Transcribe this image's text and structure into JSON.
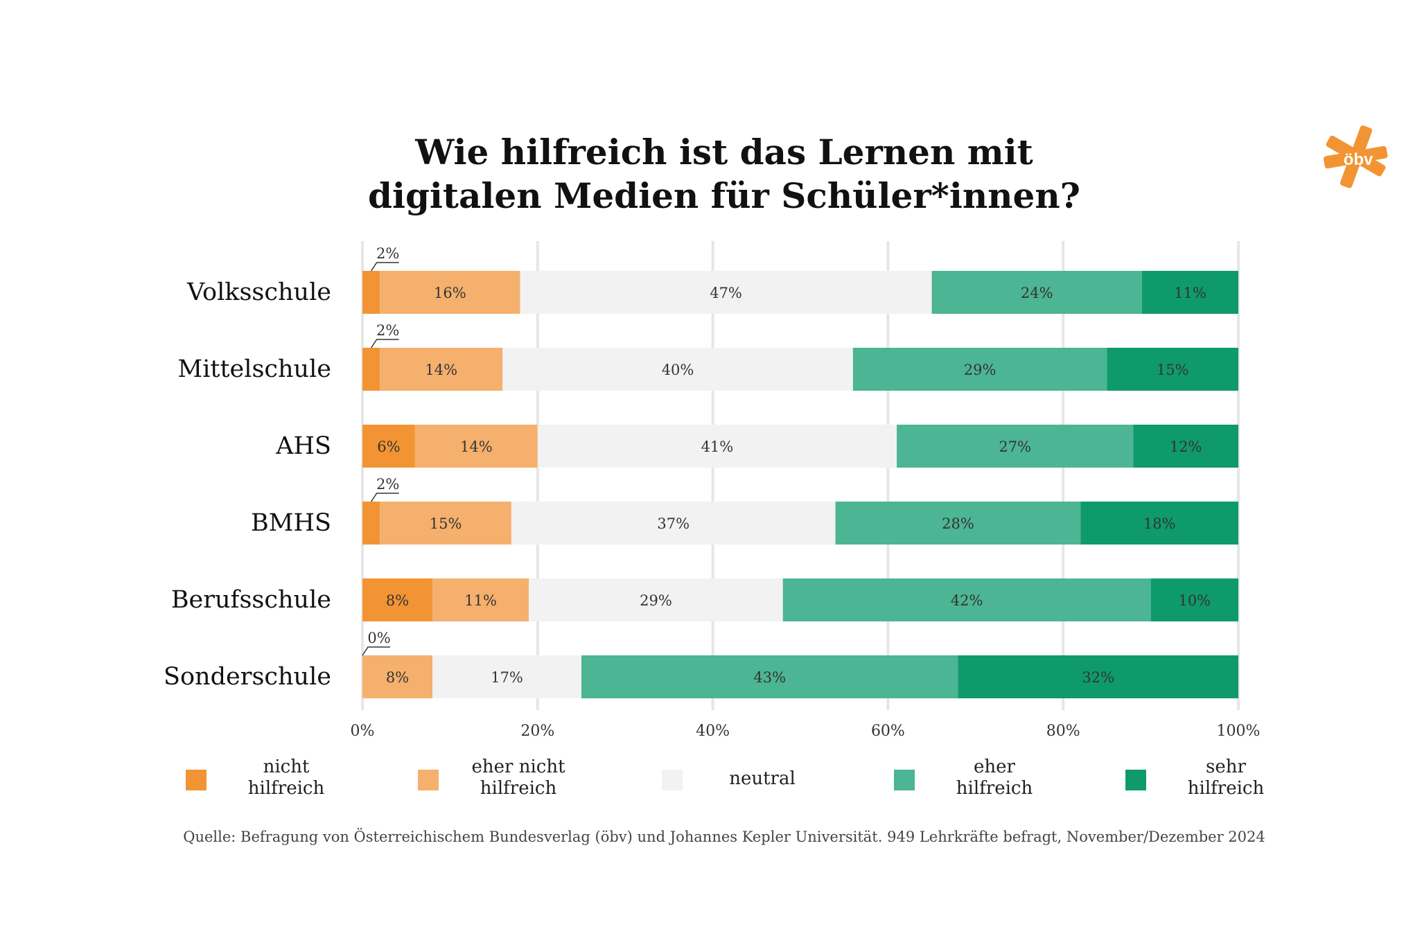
{
  "title": [
    "Wie hilfreich ist das Lernen mit",
    "digitalen Medien für Schüler*innen?"
  ],
  "logo_text": "öbv",
  "source": "Quelle: Befragung von Österreichischem Bundesverlag (öbv) und Johannes Kepler Universität. 949 Lehrkräfte befragt, November/Dezember 2024",
  "colors": {
    "nicht": "#f29433",
    "eher_nicht": "#f5b06d",
    "neutral": "#f2f2f2",
    "eher": "#4cb593",
    "sehr": "#0f9a6c",
    "logo": "#f29433"
  },
  "chart_data": {
    "type": "bar",
    "orientation": "horizontal",
    "stacked": true,
    "categories": [
      "Volksschule",
      "Mittelschule",
      "AHS",
      "BMHS",
      "Berufsschule",
      "Sonderschule"
    ],
    "series": [
      {
        "name": "nicht hilfreich",
        "values": [
          2,
          2,
          6,
          2,
          8,
          0
        ],
        "labels": [
          "2%",
          "2%",
          "6%",
          "2%",
          "8%",
          "0%"
        ]
      },
      {
        "name": "eher nicht hilfreich",
        "values": [
          16,
          14,
          14,
          15,
          11,
          8
        ],
        "labels": [
          "16%",
          "14%",
          "14%",
          "15%",
          "11%",
          "8%"
        ]
      },
      {
        "name": "neutral",
        "values": [
          47,
          40,
          41,
          37,
          29,
          17
        ],
        "labels": [
          "47%",
          "40%",
          "41%",
          "37%",
          "29%",
          "17%"
        ]
      },
      {
        "name": "eher hilfreich",
        "values": [
          24,
          29,
          27,
          28,
          42,
          43
        ],
        "labels": [
          "24%",
          "29%",
          "27%",
          "28%",
          "42%",
          "43%"
        ]
      },
      {
        "name": "sehr hilfreich",
        "values": [
          11,
          15,
          12,
          18,
          10,
          32
        ],
        "labels": [
          "11%",
          "15%",
          "12%",
          "18%",
          "10%",
          "32%"
        ]
      }
    ],
    "xlim": [
      0,
      100
    ],
    "xticks": [
      0,
      20,
      40,
      60,
      80,
      100
    ],
    "xtick_labels": [
      "0%",
      "20%",
      "40%",
      "60%",
      "80%",
      "100%"
    ],
    "grid": true,
    "legend": [
      {
        "label": "nicht\nhilfreich",
        "key": "nicht"
      },
      {
        "label": "eher nicht\nhilfreich",
        "key": "eher_nicht"
      },
      {
        "label": "neutral",
        "key": "neutral"
      },
      {
        "label": "eher\nhilfreich",
        "key": "eher"
      },
      {
        "label": "sehr\nhilfreich",
        "key": "sehr"
      }
    ],
    "legend_position": "bottom"
  }
}
